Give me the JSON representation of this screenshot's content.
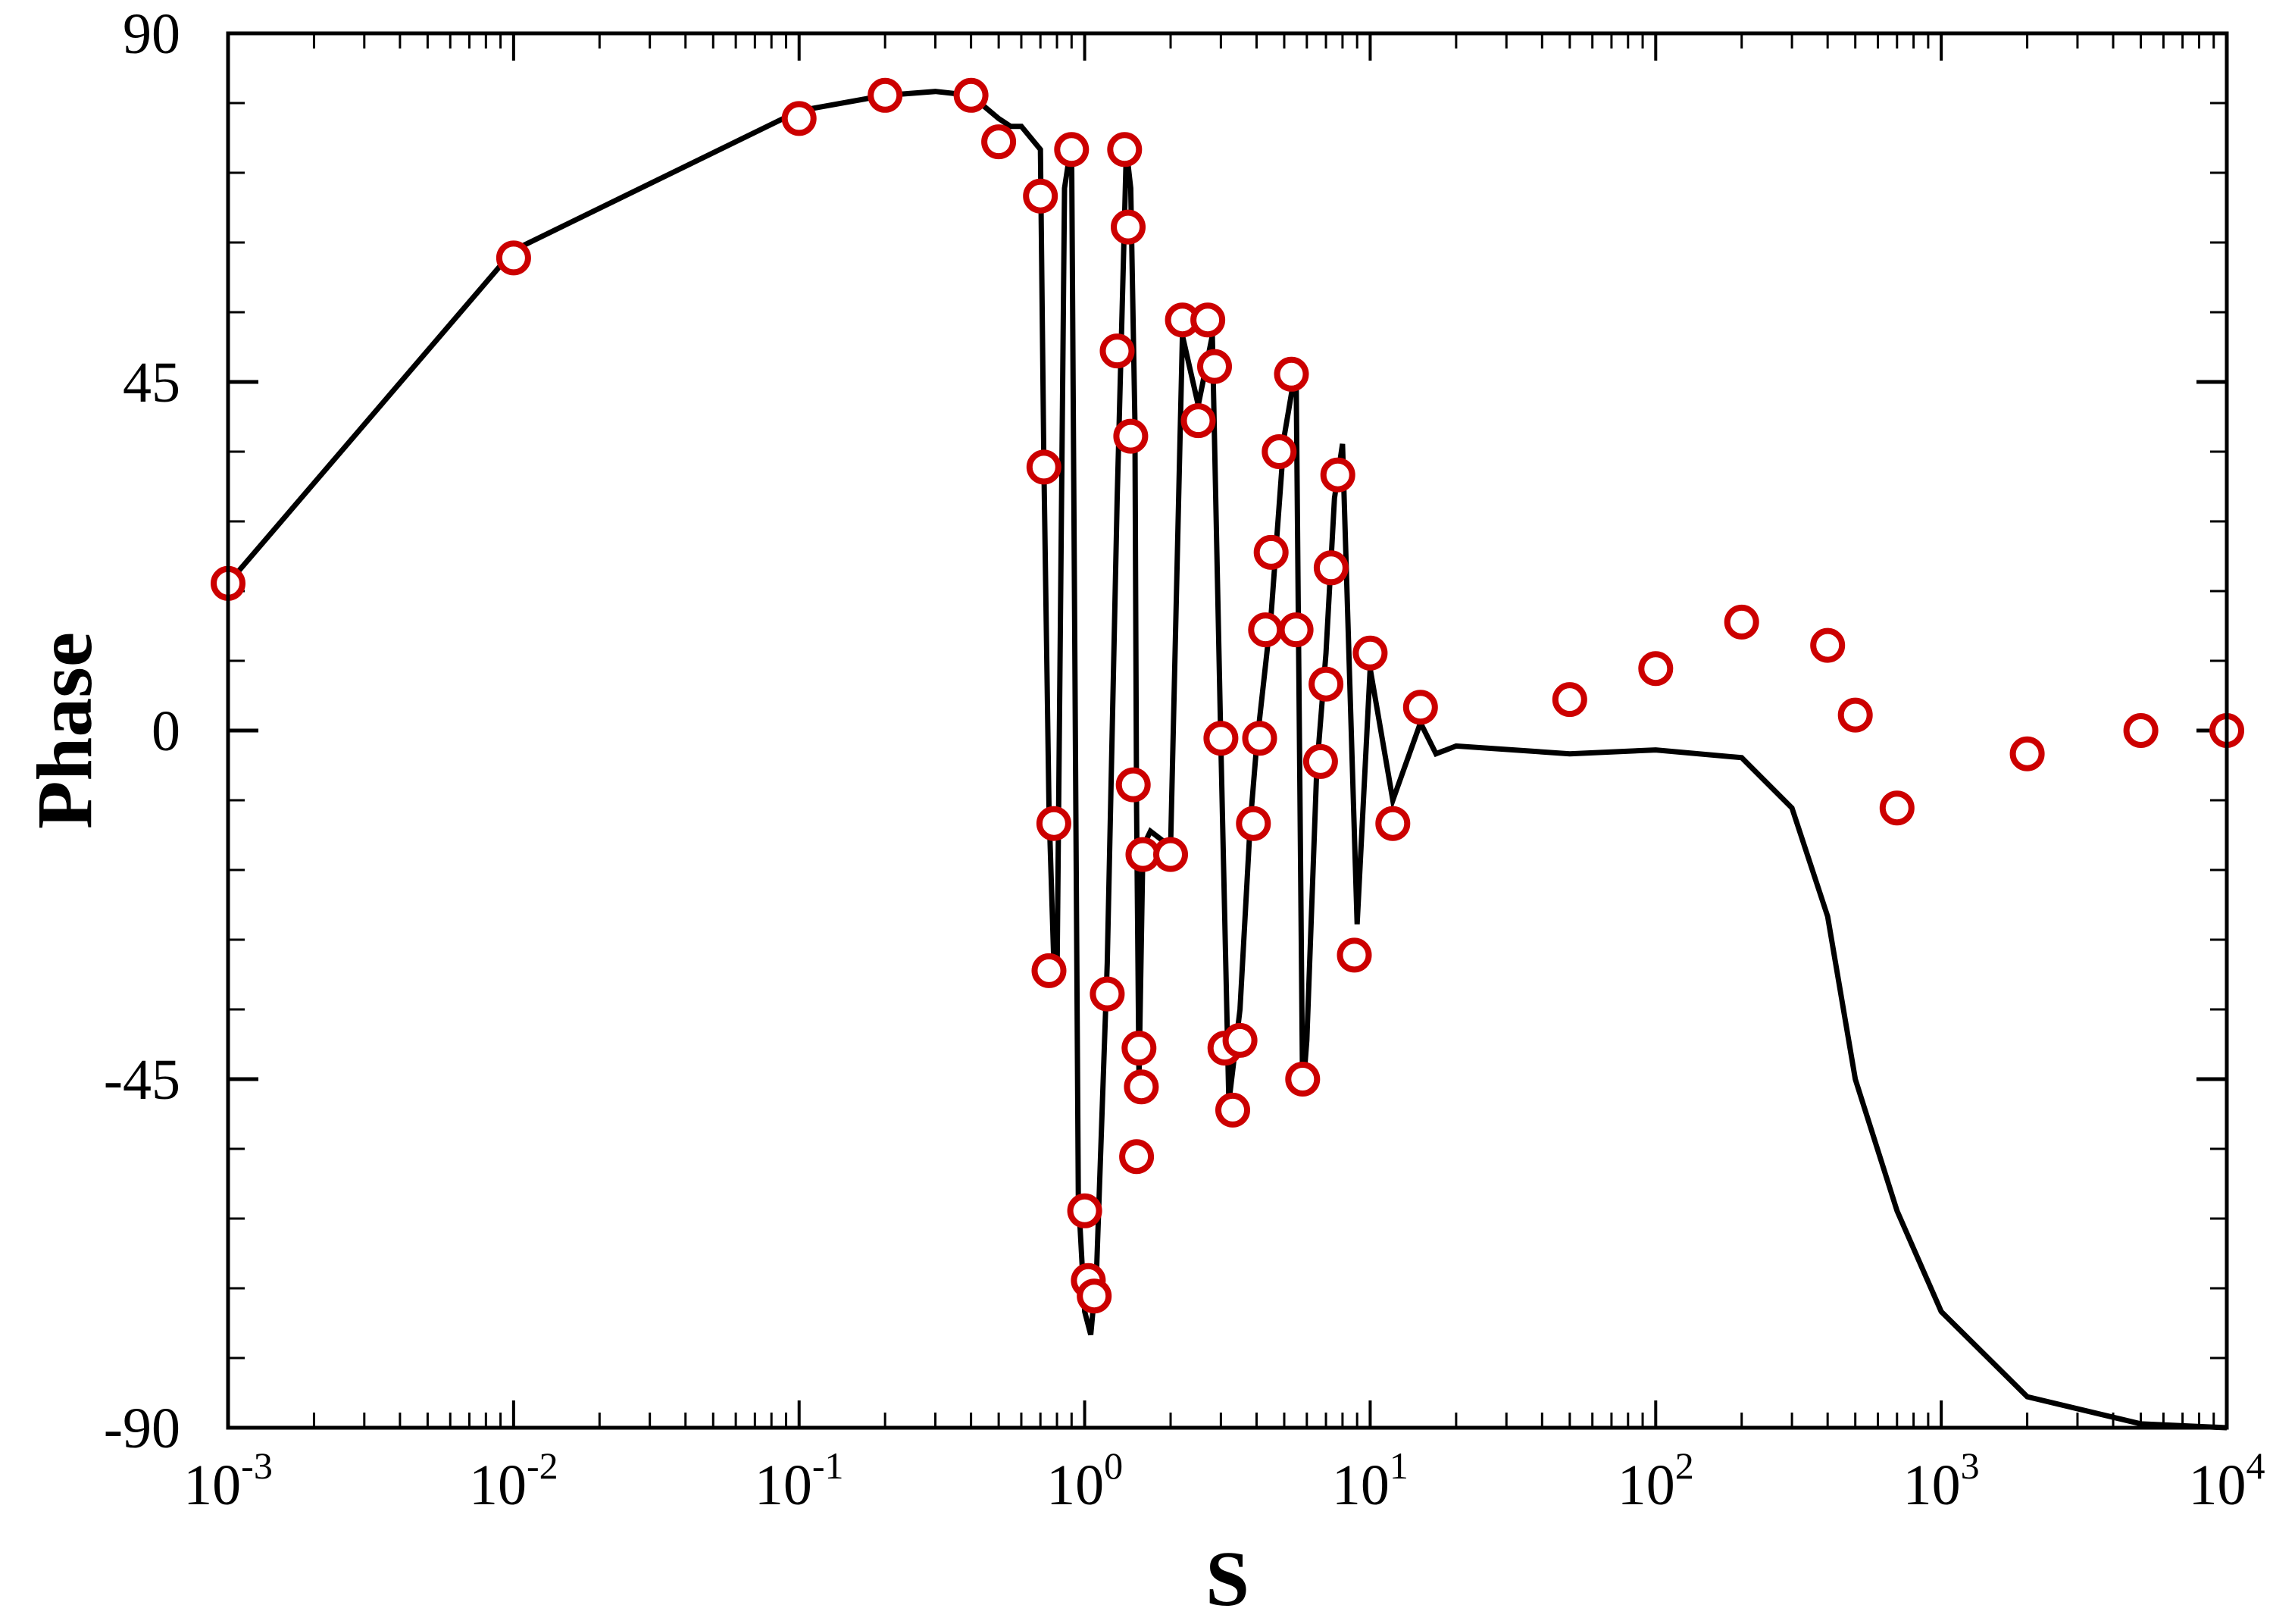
{
  "chart_data": {
    "type": "line",
    "xlabel": "S",
    "ylabel": "Phase",
    "x_scale": "log",
    "xlim": [
      0.001,
      10000
    ],
    "ylim": [
      -90,
      90
    ],
    "grid": false,
    "x_ticks": [
      {
        "base": "10",
        "exp": "-3",
        "value": 0.001
      },
      {
        "base": "10",
        "exp": "-2",
        "value": 0.01
      },
      {
        "base": "10",
        "exp": "-1",
        "value": 0.1
      },
      {
        "base": "10",
        "exp": "0",
        "value": 1
      },
      {
        "base": "10",
        "exp": "1",
        "value": 10
      },
      {
        "base": "10",
        "exp": "2",
        "value": 100
      },
      {
        "base": "10",
        "exp": "3",
        "value": 1000
      },
      {
        "base": "10",
        "exp": "4",
        "value": 10000
      }
    ],
    "y_ticks": [
      {
        "label": "90",
        "value": 90
      },
      {
        "label": "45",
        "value": 45
      },
      {
        "label": "0",
        "value": 0
      },
      {
        "label": "-45",
        "value": -45
      },
      {
        "label": "-90",
        "value": -90
      }
    ],
    "series": [
      {
        "style": "line",
        "color": "#000000",
        "x": [
          0.001,
          0.01,
          0.1,
          0.2,
          0.3,
          0.4,
          0.5,
          0.55,
          0.6,
          0.7,
          0.72,
          0.75,
          0.78,
          0.8,
          0.85,
          0.9,
          0.95,
          1.0,
          1.05,
          1.1,
          1.2,
          1.3,
          1.4,
          1.45,
          1.5,
          1.52,
          1.55,
          1.6,
          1.7,
          2.0,
          2.2,
          2.5,
          2.8,
          3.0,
          3.2,
          3.5,
          3.8,
          4.0,
          4.5,
          5.0,
          5.5,
          5.8,
          6.0,
          6.5,
          7.0,
          7.5,
          8.0,
          9.0,
          10.0,
          12.0,
          15.0,
          17.0,
          20.0,
          50.0,
          100.0,
          200.0,
          300.0,
          400.0,
          500.0,
          700.0,
          1000.0,
          2000.0,
          5000.0,
          10000.0
        ],
        "y": [
          19,
          62,
          80,
          82,
          82.5,
          82,
          79,
          78,
          78,
          75,
          34,
          -10,
          -30,
          -32,
          70,
          76,
          -60,
          -75,
          -78,
          -70,
          -30,
          30,
          75,
          70,
          40,
          -10,
          -45,
          -15,
          -13,
          -15,
          51,
          42,
          51,
          -2,
          -48,
          -36,
          -12,
          -2,
          15,
          38,
          47,
          -47,
          -40,
          -5,
          10,
          30,
          37,
          -25,
          8,
          -9,
          1,
          -3,
          -2,
          -3,
          -2.5,
          -3.5,
          -10,
          -24,
          -45,
          -62,
          -75,
          -86,
          -89.5,
          -90
        ]
      },
      {
        "style": "marker",
        "marker": "open-circle",
        "color": "#cc0000",
        "x": [
          0.001,
          0.01,
          0.1,
          0.2,
          0.4,
          0.5,
          0.7,
          0.72,
          0.75,
          0.78,
          0.9,
          1.0,
          1.03,
          1.08,
          1.2,
          1.3,
          1.38,
          1.42,
          1.45,
          1.48,
          1.52,
          1.55,
          1.58,
          1.6,
          2.0,
          2.2,
          2.5,
          2.7,
          2.85,
          3.0,
          3.1,
          3.3,
          3.5,
          3.9,
          4.1,
          4.3,
          4.5,
          4.8,
          5.3,
          5.5,
          5.8,
          6.7,
          7.0,
          7.3,
          7.7,
          8.8,
          10.0,
          12.0,
          15.0,
          50.0,
          100.0,
          200.0,
          400.0,
          500.0,
          700.0,
          2000.0,
          5000.0,
          10000.0
        ],
        "y": [
          19,
          61,
          79,
          82,
          82,
          76,
          69,
          34,
          -31,
          -12,
          75,
          -62,
          -71,
          -73,
          -34,
          49,
          75,
          65,
          38,
          -7,
          -55,
          -41,
          -46,
          -16,
          -16,
          53,
          40,
          53,
          47,
          -1,
          -41,
          -49,
          -40,
          -12,
          -1,
          13,
          23,
          36,
          46,
          13,
          -45,
          -4,
          6,
          21,
          33,
          -29,
          10,
          -12,
          3,
          4,
          8,
          14,
          11,
          2,
          -10,
          -3,
          0,
          0
        ]
      }
    ]
  }
}
